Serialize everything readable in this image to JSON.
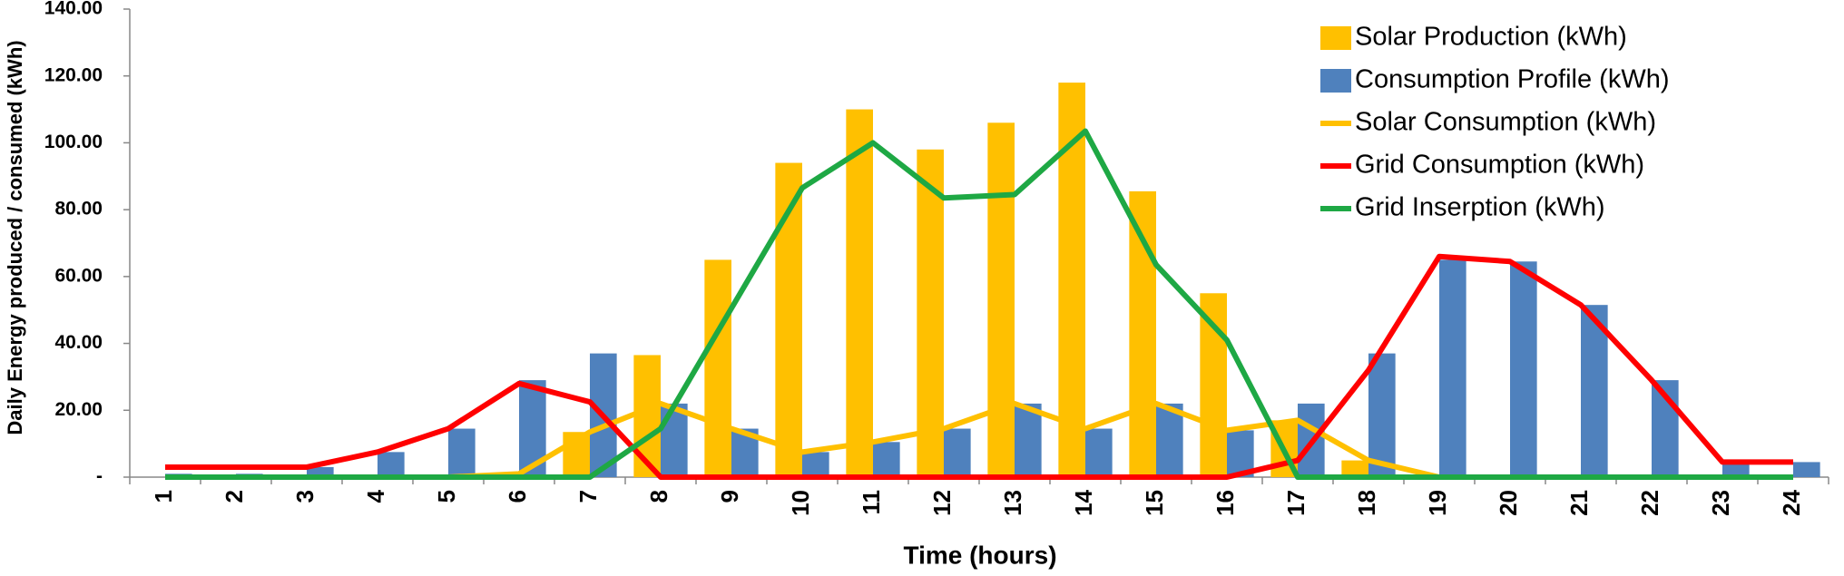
{
  "chart_data": {
    "type": "bar",
    "x_label": "Time (hours)",
    "y_label": "Daily Energy produced / consumed (kWh)",
    "categories": [
      "1",
      "2",
      "3",
      "4",
      "5",
      "6",
      "7",
      "8",
      "9",
      "10",
      "11",
      "12",
      "13",
      "14",
      "15",
      "16",
      "17",
      "18",
      "19",
      "20",
      "21",
      "22",
      "23",
      "24"
    ],
    "series": [
      {
        "name": "Solar Production (kWh)",
        "type": "bar",
        "color": "#ffc000",
        "values": [
          0,
          0,
          0,
          0,
          0,
          1,
          13.5,
          36.5,
          65,
          94,
          110,
          98,
          106,
          118,
          85.5,
          55,
          17,
          5,
          0,
          0,
          0,
          0,
          0,
          0
        ]
      },
      {
        "name": "Consumption Profile (kWh)",
        "type": "bar",
        "color": "#4f81bd",
        "values": [
          1,
          1,
          3,
          7.5,
          14.5,
          29,
          37,
          22,
          14.5,
          7.5,
          10.5,
          14.5,
          22,
          14.5,
          22,
          14,
          22,
          37,
          65,
          64.5,
          51.5,
          29,
          4,
          4.5
        ]
      },
      {
        "name": "Solar Consumption (kWh)",
        "type": "line",
        "color": "#ffc000",
        "values": [
          0,
          0,
          0,
          0,
          0,
          1,
          13.5,
          22,
          14.5,
          7.5,
          10.5,
          14.5,
          22,
          14.5,
          22,
          14,
          17,
          5,
          0,
          0,
          0,
          0,
          0,
          0
        ]
      },
      {
        "name": "Grid Consumption (kWh)",
        "type": "line",
        "color": "#ff0000",
        "values": [
          3,
          3,
          3,
          7.5,
          14.5,
          28,
          22.5,
          0,
          0,
          0,
          0,
          0,
          0,
          0,
          0,
          0,
          5,
          32,
          66,
          64.5,
          51.5,
          29,
          4.5,
          4.5
        ]
      },
      {
        "name": "Grid Inserption (kWh)",
        "type": "line",
        "color": "#1ea844",
        "values": [
          0,
          0,
          0,
          0,
          0,
          0,
          0,
          14.5,
          50.5,
          86.5,
          100,
          83.5,
          84.5,
          103.5,
          63.5,
          41,
          0,
          0,
          0,
          0,
          0,
          0,
          0,
          0
        ]
      }
    ],
    "ylim": [
      0,
      140
    ],
    "yticks": [
      {
        "value": 0,
        "label": "-"
      },
      {
        "value": 20,
        "label": "20.00"
      },
      {
        "value": 40,
        "label": "40.00"
      },
      {
        "value": 60,
        "label": "60.00"
      },
      {
        "value": 80,
        "label": "80.00"
      },
      {
        "value": 100,
        "label": "100.00"
      },
      {
        "value": 120,
        "label": "120.00"
      },
      {
        "value": 140,
        "label": "140.00"
      }
    ],
    "grid": false,
    "legend": "upper right"
  }
}
